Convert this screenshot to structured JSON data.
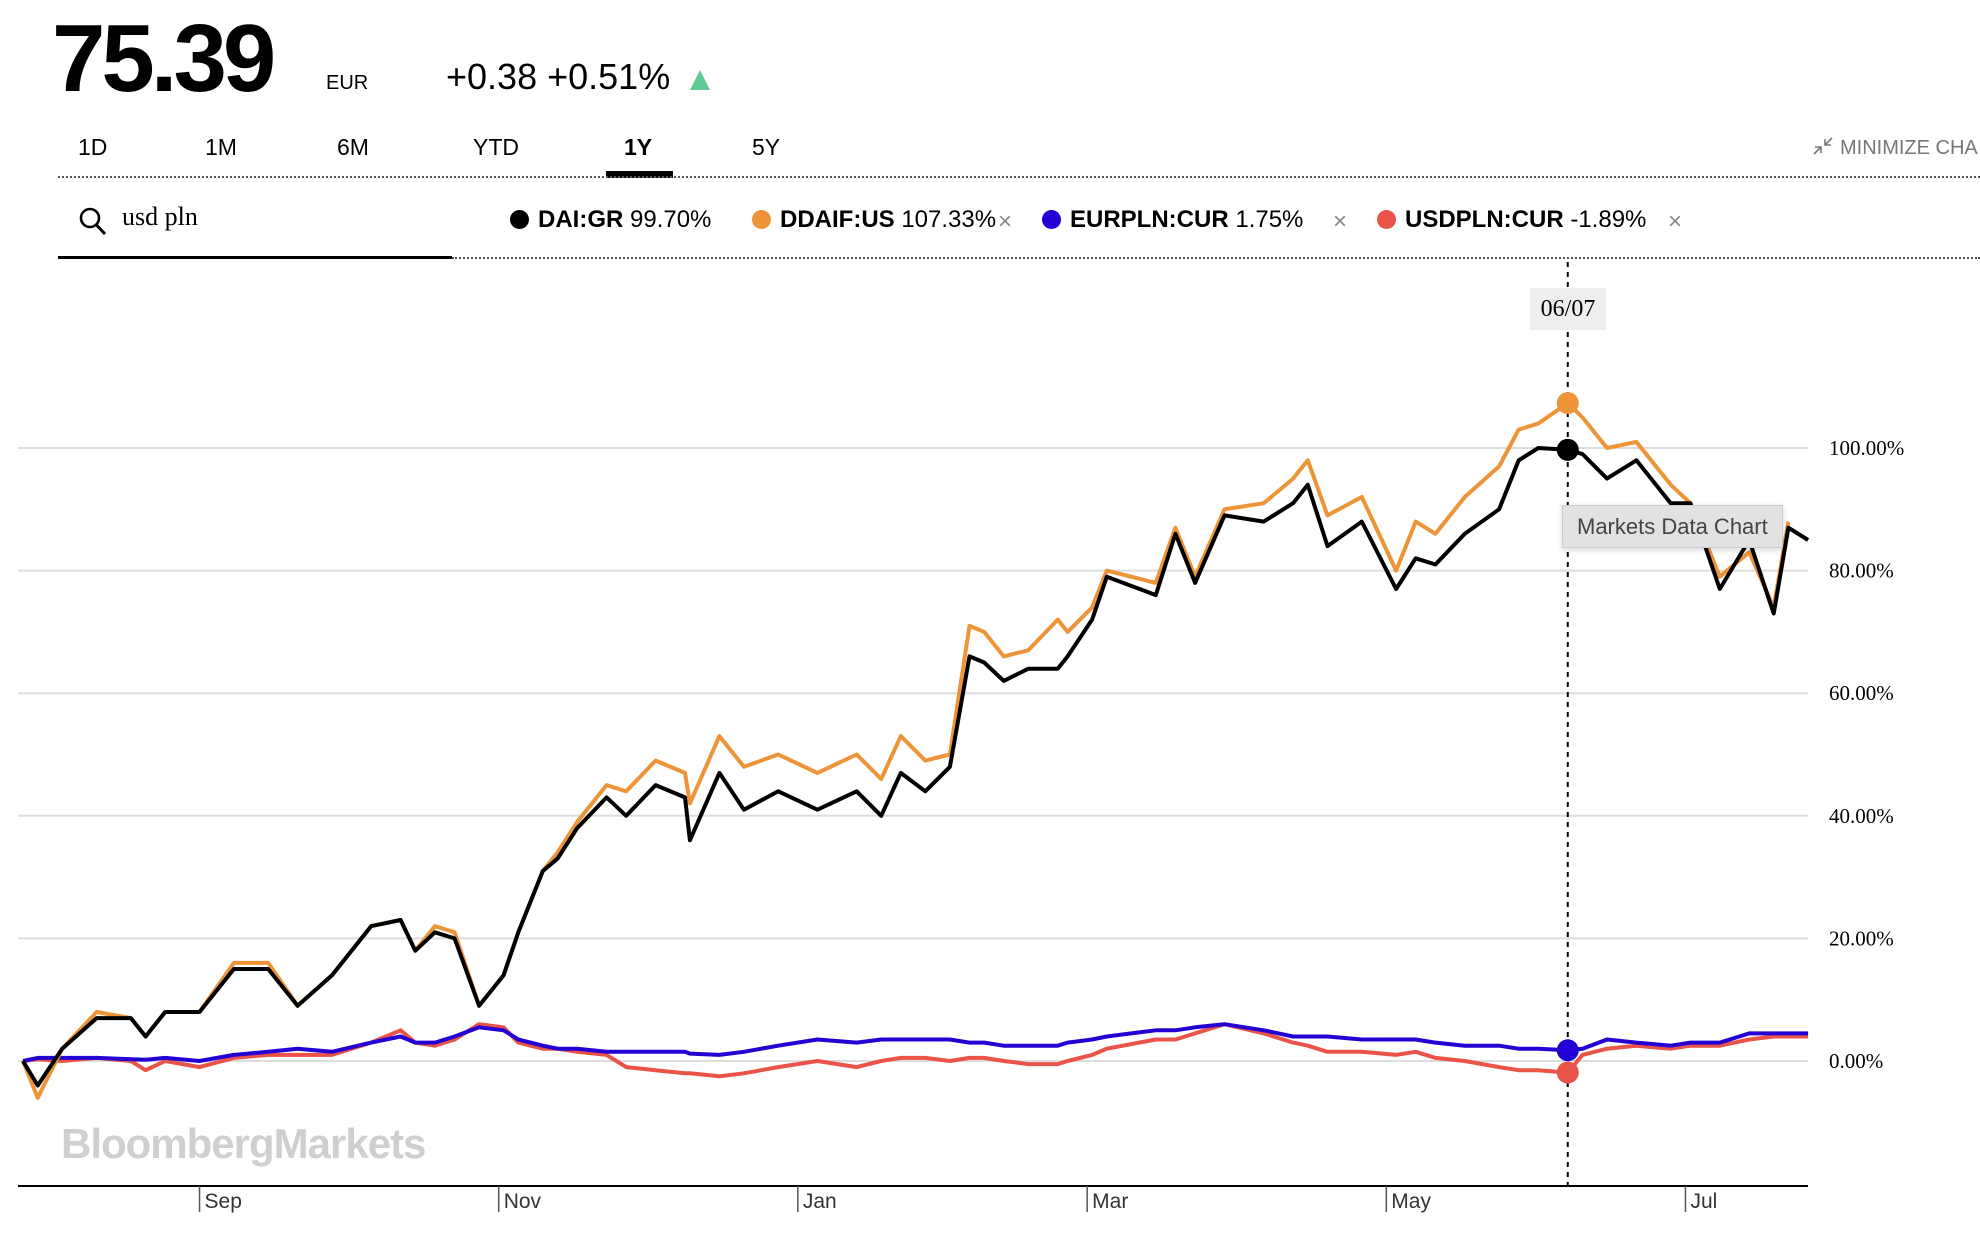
{
  "header": {
    "price": "75.39",
    "currency": "EUR",
    "change": "+0.38",
    "change_pct": "+0.51%",
    "direction": "up",
    "up_color": "#5ecb95"
  },
  "tabs": [
    {
      "label": "1D"
    },
    {
      "label": "1M"
    },
    {
      "label": "6M"
    },
    {
      "label": "YTD"
    },
    {
      "label": "1Y",
      "active": true
    },
    {
      "label": "5Y"
    }
  ],
  "minimize_label": "MINIMIZE CHA",
  "search": {
    "value": "usd pln",
    "icon": "search-icon"
  },
  "legend": [
    {
      "symbol": "DAI:GR",
      "value": "99.70%",
      "color": "#000000",
      "removable": false
    },
    {
      "symbol": "DDAIF:US",
      "value": "107.33%",
      "color": "#ee9438",
      "removable": true
    },
    {
      "symbol": "EURPLN:CUR",
      "value": "1.75%",
      "color": "#2300d4",
      "removable": true
    },
    {
      "symbol": "USDPLN:CUR",
      "value": "-1.89%",
      "color": "#ea5347",
      "removable": true
    }
  ],
  "remove_glyph": "×",
  "crosshair": {
    "date_label": "06/07",
    "date": "2021-06-07"
  },
  "tooltip": "Markets Data Chart",
  "watermark": "BloombergMarkets",
  "chart_data": {
    "type": "line",
    "xlabel": "",
    "ylabel": "",
    "ylim": [
      -20,
      130
    ],
    "yticks": [
      0,
      20,
      40,
      60,
      80,
      100
    ],
    "ytick_labels": [
      "0.00%",
      "20.00%",
      "40.00%",
      "60.00%",
      "80.00%",
      "100.00%"
    ],
    "xticks": [
      "2020-09-01",
      "2020-11-01",
      "2021-01-01",
      "2021-03-01",
      "2021-05-01",
      "2021-07-01"
    ],
    "xtick_labels": [
      "Sep",
      "Nov",
      "Jan",
      "Mar",
      "May",
      "Jul"
    ],
    "grid": true,
    "legend": "top",
    "x": [
      "2020-07-27",
      "2020-07-30",
      "2020-08-04",
      "2020-08-11",
      "2020-08-18",
      "2020-08-21",
      "2020-08-25",
      "2020-09-01",
      "2020-09-08",
      "2020-09-15",
      "2020-09-21",
      "2020-09-28",
      "2020-10-06",
      "2020-10-12",
      "2020-10-15",
      "2020-10-19",
      "2020-10-23",
      "2020-10-28",
      "2020-11-02",
      "2020-11-05",
      "2020-11-10",
      "2020-11-13",
      "2020-11-17",
      "2020-11-23",
      "2020-11-27",
      "2020-12-03",
      "2020-12-09",
      "2020-12-10",
      "2020-12-16",
      "2020-12-21",
      "2020-12-28",
      "2021-01-05",
      "2021-01-13",
      "2021-01-18",
      "2021-01-22",
      "2021-01-27",
      "2021-02-01",
      "2021-02-05",
      "2021-02-08",
      "2021-02-12",
      "2021-02-17",
      "2021-02-23",
      "2021-02-25",
      "2021-03-02",
      "2021-03-05",
      "2021-03-15",
      "2021-03-19",
      "2021-03-23",
      "2021-03-29",
      "2021-04-06",
      "2021-04-12",
      "2021-04-15",
      "2021-04-19",
      "2021-04-26",
      "2021-05-03",
      "2021-05-07",
      "2021-05-11",
      "2021-05-17",
      "2021-05-24",
      "2021-05-28",
      "2021-06-01",
      "2021-06-07",
      "2021-06-10",
      "2021-06-15",
      "2021-06-21",
      "2021-06-28",
      "2021-07-02",
      "2021-07-08",
      "2021-07-14",
      "2021-07-19",
      "2021-07-22",
      "2021-07-26"
    ],
    "series": [
      {
        "name": "DAI:GR",
        "color": "#000000",
        "values": [
          0,
          -4,
          2,
          7,
          7,
          4,
          8,
          8,
          15,
          15,
          9,
          14,
          22,
          23,
          18,
          21,
          20,
          9,
          14,
          21,
          31,
          33,
          38,
          43,
          40,
          45,
          43,
          36,
          47,
          41,
          44,
          41,
          44,
          40,
          47,
          44,
          48,
          66,
          65,
          62,
          64,
          64,
          66,
          72,
          79,
          76,
          86,
          78,
          89,
          88,
          91,
          94,
          84,
          88,
          77,
          82,
          81,
          86,
          90,
          98,
          100,
          99.7,
          99,
          95,
          98,
          91,
          91,
          77,
          85,
          73,
          87,
          85
        ]
      },
      {
        "name": "DDAIF:US",
        "color": "#ee9438",
        "values": [
          0,
          -6,
          2,
          8,
          7,
          4,
          8,
          8,
          16,
          16,
          9,
          14,
          22,
          23,
          18,
          22,
          21,
          9,
          14,
          21,
          31,
          34,
          39,
          45,
          44,
          49,
          47,
          42,
          53,
          48,
          50,
          47,
          50,
          46,
          53,
          49,
          50,
          71,
          70,
          66,
          67,
          72,
          70,
          74,
          80,
          78,
          87,
          79,
          90,
          91,
          95,
          98,
          89,
          92,
          80,
          88,
          86,
          92,
          97,
          103,
          104,
          107.33,
          105,
          100,
          101,
          94,
          91,
          79,
          83,
          74,
          88,
          null
        ]
      },
      {
        "name": "EURPLN:CUR",
        "color": "#2300d4",
        "values": [
          0,
          0.5,
          0.5,
          0.5,
          0.3,
          0.2,
          0.5,
          0,
          1,
          1.5,
          2,
          1.5,
          3,
          4,
          3,
          3,
          4,
          5.5,
          5,
          3.5,
          2.5,
          2,
          2,
          1.5,
          1.5,
          1.5,
          1.5,
          1.2,
          1,
          1.5,
          2.5,
          3.5,
          3,
          3.5,
          3.5,
          3.5,
          3.5,
          3,
          3,
          2.5,
          2.5,
          2.5,
          3,
          3.5,
          4,
          5,
          5,
          5.5,
          6,
          5,
          4,
          4,
          4,
          3.5,
          3.5,
          3.5,
          3,
          2.5,
          2.5,
          2,
          2,
          1.75,
          2,
          3.5,
          3,
          2.5,
          3,
          3,
          4.5,
          4.5,
          4.5,
          4.5
        ]
      },
      {
        "name": "USDPLN:CUR",
        "color": "#ea5347",
        "values": [
          0,
          0.3,
          0,
          0.5,
          0,
          -1.5,
          0,
          -1,
          0.5,
          1,
          1,
          1,
          3,
          5,
          3,
          2.5,
          3.5,
          6,
          5.5,
          3,
          2,
          2,
          1.5,
          1,
          -1,
          -1.5,
          -2,
          -2,
          -2.5,
          -2,
          -1,
          0,
          -1,
          0,
          0.5,
          0.5,
          0,
          0.5,
          0.5,
          0,
          -0.5,
          -0.5,
          0,
          1,
          2,
          3.5,
          3.5,
          4.5,
          6,
          4.5,
          3,
          2.5,
          1.5,
          1.5,
          1,
          1.5,
          0.5,
          0,
          -1,
          -1.5,
          -1.5,
          -1.89,
          1,
          2,
          2.5,
          2,
          2.5,
          2.5,
          3.5,
          4,
          4,
          4
        ]
      }
    ]
  }
}
